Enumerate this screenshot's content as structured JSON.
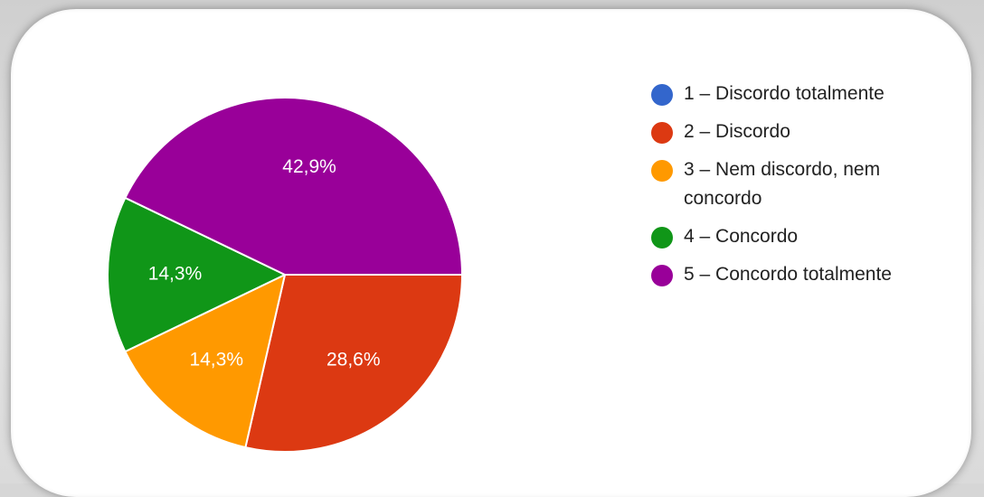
{
  "chart_data": {
    "type": "pie",
    "categories": [
      "1 – Discordo totalmente",
      "2 – Discordo",
      "3 – Nem discordo, nem concordo",
      "4 – Concordo",
      "5 – Concordo totalmente"
    ],
    "values": [
      0,
      28.6,
      14.3,
      14.3,
      42.9
    ],
    "value_labels": [
      "",
      "28,6%",
      "14,3%",
      "14,3%",
      "42,9%"
    ],
    "colors": [
      "#3366cc",
      "#dc3912",
      "#ff9900",
      "#109618",
      "#990099"
    ],
    "start_angle_deg": 90,
    "direction": "clockwise",
    "legend_position": "right",
    "title": ""
  }
}
